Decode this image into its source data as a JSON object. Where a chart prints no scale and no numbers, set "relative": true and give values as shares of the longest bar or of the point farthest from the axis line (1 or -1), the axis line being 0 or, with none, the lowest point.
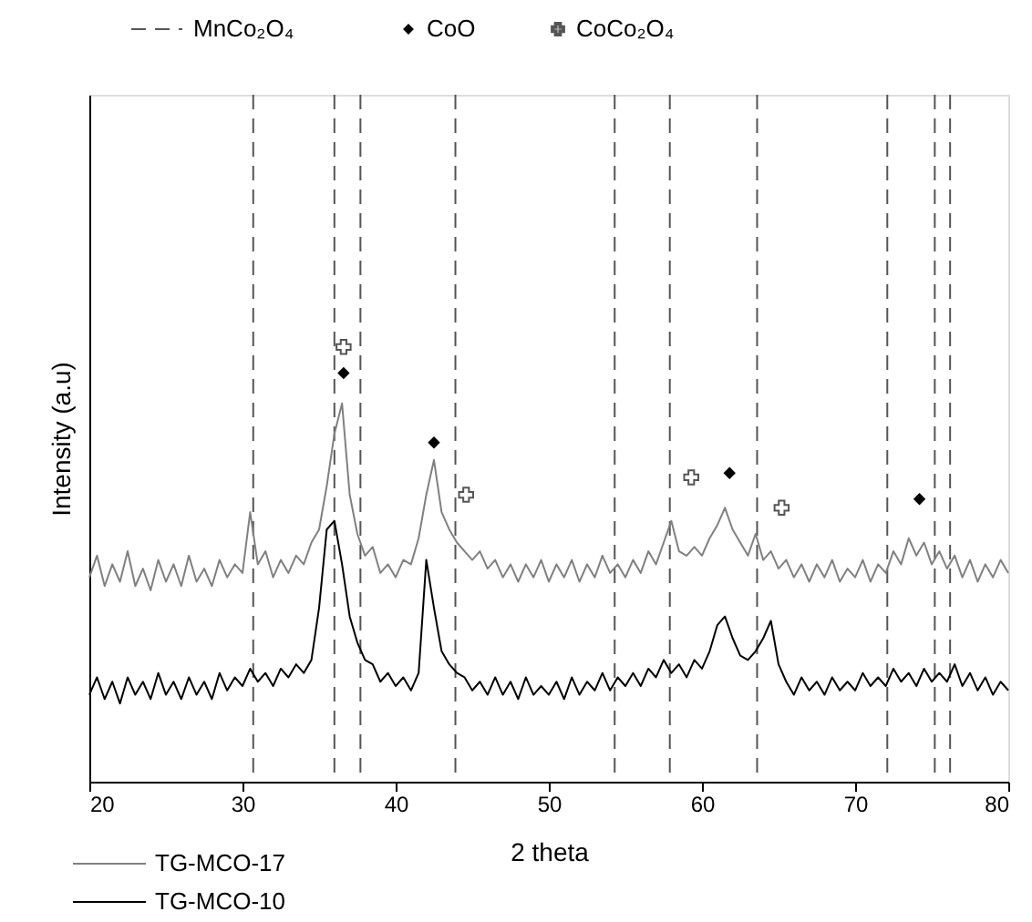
{
  "chart_data": {
    "type": "line",
    "relative": true,
    "xlabel": "2 theta",
    "ylabel": "Intensity (a.u)",
    "xlim": [
      20,
      80
    ],
    "xticks": [
      20,
      30,
      40,
      50,
      60,
      70,
      80
    ],
    "grid": false,
    "legend": "top left",
    "line_style": "solid",
    "x": [
      20,
      20.5,
      21,
      21.5,
      22,
      22.5,
      23,
      23.5,
      24,
      24.5,
      25,
      25.5,
      26,
      26.5,
      27,
      27.5,
      28,
      28.5,
      29,
      29.5,
      30,
      30.5,
      31,
      31.5,
      32,
      32.5,
      33,
      33.5,
      34,
      34.5,
      35,
      35.5,
      36,
      36.5,
      37,
      37.5,
      38,
      38.5,
      39,
      39.5,
      40,
      40.5,
      41,
      41.5,
      42,
      42.5,
      43,
      43.5,
      44,
      44.5,
      45,
      45.5,
      46,
      46.5,
      47,
      47.5,
      48,
      48.5,
      49,
      49.5,
      50,
      50.5,
      51,
      51.5,
      52,
      52.5,
      53,
      53.5,
      54,
      54.5,
      55,
      55.5,
      56,
      56.5,
      57,
      57.5,
      58,
      58.5,
      59,
      59.5,
      60,
      60.5,
      61,
      61.5,
      62,
      62.5,
      63,
      63.5,
      64,
      64.5,
      65,
      65.5,
      66,
      66.5,
      67,
      67.5,
      68,
      68.5,
      69,
      69.5,
      70,
      70.5,
      71,
      71.5,
      72,
      72.5,
      73,
      73.5,
      74,
      74.5,
      75,
      75.5,
      76,
      76.5,
      77,
      77.5,
      78,
      78.5,
      79,
      79.5,
      80
    ],
    "series": [
      {
        "name": "TG-MCO-17",
        "color": "#808080",
        "values": [
          0.47,
          0.52,
          0.45,
          0.5,
          0.46,
          0.53,
          0.45,
          0.49,
          0.44,
          0.51,
          0.46,
          0.5,
          0.45,
          0.52,
          0.46,
          0.49,
          0.45,
          0.51,
          0.47,
          0.5,
          0.48,
          0.62,
          0.5,
          0.53,
          0.47,
          0.51,
          0.48,
          0.52,
          0.5,
          0.55,
          0.58,
          0.68,
          0.8,
          0.87,
          0.66,
          0.57,
          0.52,
          0.54,
          0.48,
          0.5,
          0.47,
          0.51,
          0.5,
          0.56,
          0.66,
          0.74,
          0.62,
          0.58,
          0.55,
          0.53,
          0.51,
          0.53,
          0.49,
          0.51,
          0.47,
          0.5,
          0.46,
          0.5,
          0.47,
          0.51,
          0.46,
          0.5,
          0.47,
          0.51,
          0.46,
          0.5,
          0.47,
          0.52,
          0.48,
          0.5,
          0.47,
          0.51,
          0.48,
          0.53,
          0.5,
          0.55,
          0.6,
          0.53,
          0.52,
          0.54,
          0.52,
          0.56,
          0.59,
          0.63,
          0.58,
          0.55,
          0.52,
          0.57,
          0.51,
          0.53,
          0.49,
          0.51,
          0.47,
          0.5,
          0.46,
          0.5,
          0.47,
          0.51,
          0.46,
          0.49,
          0.47,
          0.51,
          0.46,
          0.5,
          0.48,
          0.53,
          0.5,
          0.56,
          0.52,
          0.55,
          0.5,
          0.53,
          0.49,
          0.52,
          0.47,
          0.51,
          0.46,
          0.5,
          0.47,
          0.51,
          0.48
        ]
      },
      {
        "name": "TG-MCO-10",
        "color": "#000000",
        "values": [
          0.2,
          0.24,
          0.19,
          0.23,
          0.18,
          0.24,
          0.2,
          0.23,
          0.19,
          0.25,
          0.2,
          0.23,
          0.19,
          0.24,
          0.2,
          0.23,
          0.19,
          0.25,
          0.21,
          0.24,
          0.22,
          0.26,
          0.23,
          0.25,
          0.22,
          0.26,
          0.24,
          0.27,
          0.25,
          0.28,
          0.4,
          0.58,
          0.6,
          0.5,
          0.38,
          0.32,
          0.28,
          0.27,
          0.23,
          0.25,
          0.22,
          0.24,
          0.21,
          0.25,
          0.51,
          0.4,
          0.3,
          0.27,
          0.25,
          0.24,
          0.21,
          0.23,
          0.2,
          0.24,
          0.2,
          0.23,
          0.19,
          0.24,
          0.2,
          0.22,
          0.2,
          0.23,
          0.19,
          0.24,
          0.2,
          0.23,
          0.21,
          0.25,
          0.21,
          0.24,
          0.22,
          0.25,
          0.22,
          0.26,
          0.24,
          0.28,
          0.25,
          0.27,
          0.24,
          0.28,
          0.26,
          0.3,
          0.36,
          0.38,
          0.33,
          0.29,
          0.28,
          0.3,
          0.33,
          0.37,
          0.27,
          0.23,
          0.2,
          0.24,
          0.21,
          0.23,
          0.2,
          0.24,
          0.21,
          0.23,
          0.21,
          0.25,
          0.22,
          0.24,
          0.22,
          0.26,
          0.23,
          0.25,
          0.22,
          0.26,
          0.23,
          0.25,
          0.23,
          0.27,
          0.22,
          0.25,
          0.21,
          0.24,
          0.2,
          0.23,
          0.21
        ]
      },
      {
        "name": "CoO",
        "type": "scatter",
        "marker": "diamond",
        "color": "#000000",
        "x": [
          36.6,
          42.5,
          61.8,
          74.2
        ],
        "values": [
          0.94,
          0.78,
          0.71,
          0.65
        ]
      },
      {
        "name": "CoCo₂O₄",
        "type": "scatter",
        "marker": "cross",
        "color": "#555555",
        "x": [
          36.6,
          44.6,
          59.3,
          65.2
        ],
        "values": [
          1.0,
          0.66,
          0.7,
          0.63
        ]
      }
    ],
    "ref_lines": [
      {
        "axis": "x",
        "value": 30.7,
        "label": "MnCo₂O₄",
        "color": "#555555",
        "line_style": "dashed"
      },
      {
        "axis": "x",
        "value": 36.0,
        "color": "#555555",
        "line_style": "dashed"
      },
      {
        "axis": "x",
        "value": 37.7,
        "color": "#555555",
        "line_style": "dashed"
      },
      {
        "axis": "x",
        "value": 43.9,
        "color": "#555555",
        "line_style": "dashed"
      },
      {
        "axis": "x",
        "value": 54.3,
        "color": "#555555",
        "line_style": "dashed"
      },
      {
        "axis": "x",
        "value": 57.9,
        "color": "#555555",
        "line_style": "dashed"
      },
      {
        "axis": "x",
        "value": 63.6,
        "color": "#555555",
        "line_style": "dashed"
      },
      {
        "axis": "x",
        "value": 72.1,
        "color": "#555555",
        "line_style": "dashed"
      },
      {
        "axis": "x",
        "value": 75.2,
        "color": "#555555",
        "line_style": "dashed"
      },
      {
        "axis": "x",
        "value": 76.2,
        "color": "#555555",
        "line_style": "dashed"
      }
    ]
  }
}
